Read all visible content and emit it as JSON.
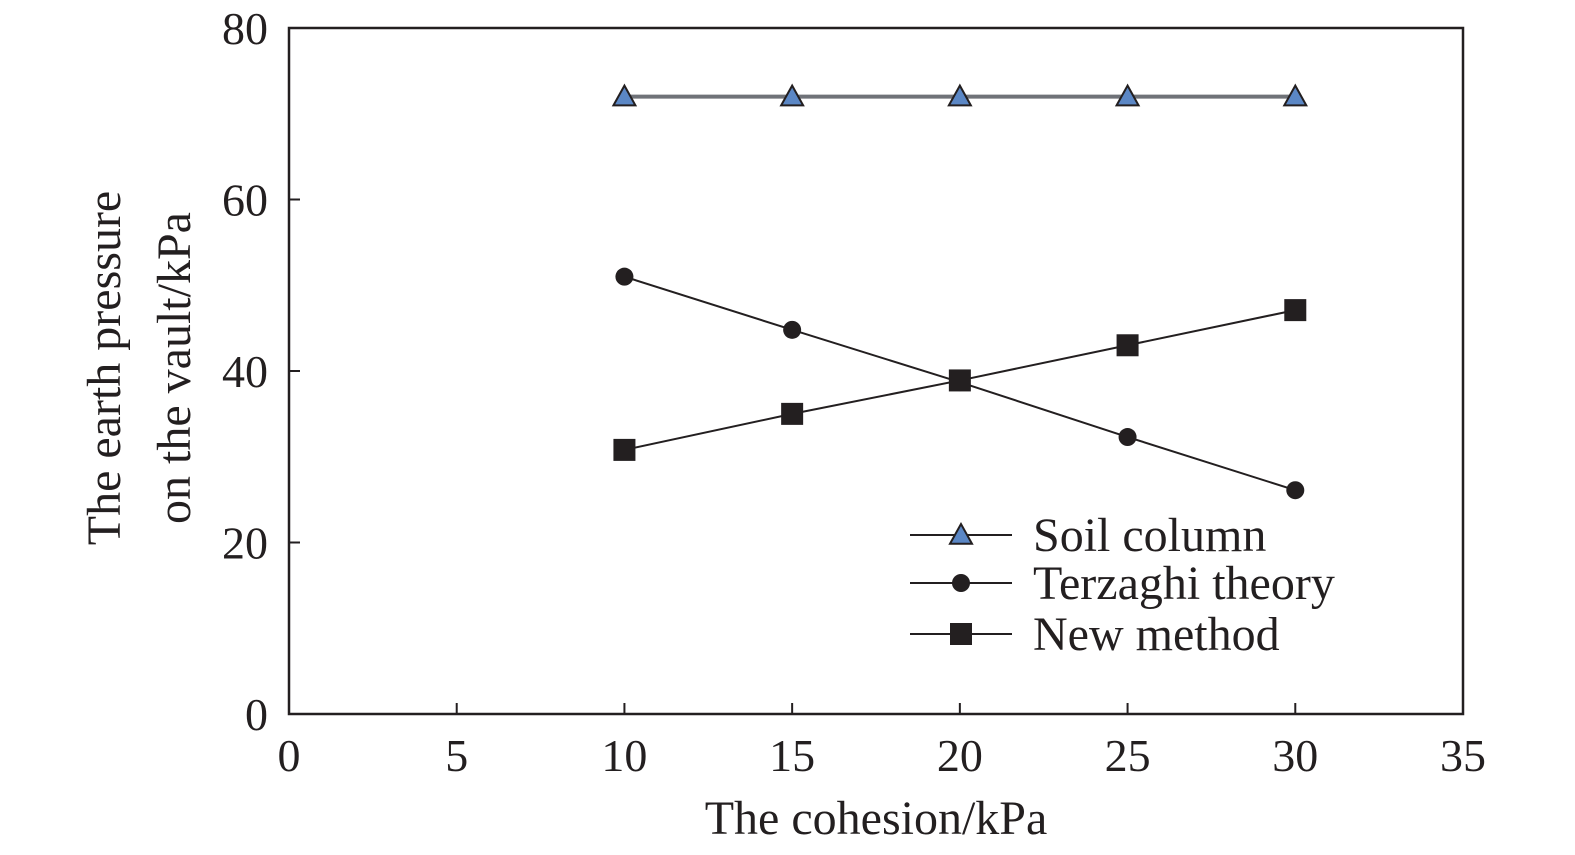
{
  "chart_data": {
    "type": "line",
    "title": "",
    "xlabel": "The cohesion/kPa",
    "ylabel_lines": [
      "The earth pressure",
      "on the vault/kPa"
    ],
    "xlim": [
      0,
      35
    ],
    "ylim": [
      0,
      80
    ],
    "xticks": [
      0,
      5,
      10,
      15,
      20,
      25,
      30,
      35
    ],
    "yticks": [
      0,
      20,
      40,
      60,
      80
    ],
    "grid": false,
    "legend_position": "bottom-right",
    "series": [
      {
        "name": "Soil column",
        "marker": "triangle",
        "color": "#6f7278",
        "marker_fill": "#5b87c5",
        "x": [
          10,
          15,
          20,
          25,
          30
        ],
        "y": [
          72,
          72,
          72,
          72,
          72
        ]
      },
      {
        "name": "Terzaghi theory",
        "marker": "circle",
        "color": "#231f20",
        "marker_fill": "#231f20",
        "x": [
          10,
          15,
          20,
          25,
          30
        ],
        "y": [
          51,
          44.8,
          38.7,
          32.3,
          26.1
        ]
      },
      {
        "name": "New method",
        "marker": "square",
        "color": "#231f20",
        "marker_fill": "#231f20",
        "x": [
          10,
          15,
          20,
          25,
          30
        ],
        "y": [
          30.8,
          35,
          38.9,
          43,
          47.1
        ]
      }
    ]
  }
}
